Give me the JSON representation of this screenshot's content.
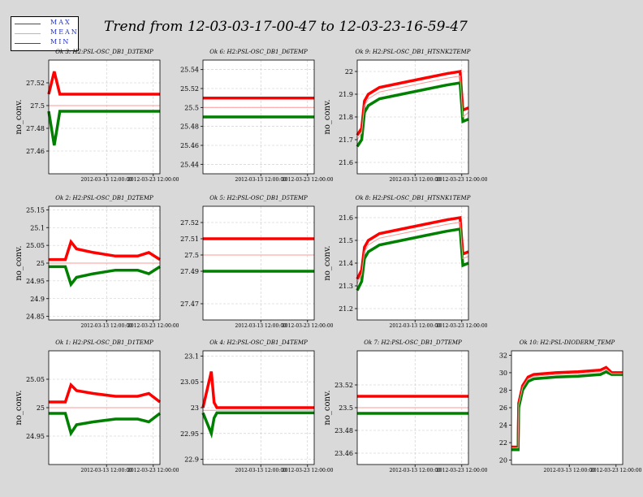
{
  "title": "Trend from 12-03-03-17-00-47 to 12-03-23-16-59-47",
  "legend": [
    {
      "label": "MAX",
      "color": "#ff0000"
    },
    {
      "label": "MEAN",
      "color": "#ff9999"
    },
    {
      "label": "MIN",
      "color": "#008000"
    }
  ],
  "colors": {
    "max": "#ff0000",
    "mean": "#ff9999",
    "min": "#008000",
    "plot_bg": "#ffffff",
    "grid": "#c8c8c8"
  },
  "chart_data": [
    {
      "type": "line",
      "title": "Ok 3: H2:PSL-OSC_DB1_D3TEMP",
      "ylabel": "no_conv.",
      "xticks": [
        "2012-03-13 12:00:00",
        "2012-03-23 12:00:00"
      ],
      "x_range": [
        "2012-03-03 17:00:47",
        "2012-03-23 16:59:47"
      ],
      "ylim": [
        27.44,
        27.54
      ],
      "yticks": [
        27.46,
        27.48,
        27.5,
        27.52
      ],
      "grid": true,
      "series": [
        {
          "name": "MAX",
          "x": [
            0,
            1,
            2,
            3,
            4,
            20
          ],
          "values": [
            27.51,
            27.53,
            27.51,
            27.51,
            27.51,
            27.51
          ]
        },
        {
          "name": "MEAN",
          "x": [
            0,
            20
          ],
          "values": [
            27.5,
            27.5
          ]
        },
        {
          "name": "MIN",
          "x": [
            0,
            1,
            1.5,
            2,
            3,
            20
          ],
          "values": [
            27.495,
            27.465,
            27.48,
            27.495,
            27.495,
            27.495
          ]
        }
      ]
    },
    {
      "type": "line",
      "title": "Ok 6: H2:PSL-OSC_DB1_D6TEMP",
      "ylabel": "",
      "xticks": [
        "2012-03-13 12:00:00",
        "2012-03-23 12:00:00"
      ],
      "x_range": [
        "2012-03-03 17:00:47",
        "2012-03-23 16:59:47"
      ],
      "ylim": [
        25.43,
        25.55
      ],
      "yticks": [
        25.44,
        25.46,
        25.48,
        25.5,
        25.52,
        25.54
      ],
      "grid": true,
      "series": [
        {
          "name": "MAX",
          "x": [
            0,
            20
          ],
          "values": [
            25.51,
            25.51
          ]
        },
        {
          "name": "MEAN",
          "x": [
            0,
            20
          ],
          "values": [
            25.5,
            25.5
          ]
        },
        {
          "name": "MIN",
          "x": [
            0,
            20
          ],
          "values": [
            25.49,
            25.49
          ]
        }
      ]
    },
    {
      "type": "line",
      "title": "Ok 9: H2:PSL-OSC_DB1_HTSNK2TEMP",
      "ylabel": "no_conv.",
      "xticks": [
        "2012-03-13 12:00:00",
        "2012-03-23 12:00:00"
      ],
      "x_range": [
        "2012-03-03 17:00:47",
        "2012-03-23 16:59:47"
      ],
      "ylim": [
        21.55,
        22.05
      ],
      "yticks": [
        21.6,
        21.7,
        21.8,
        21.9,
        22
      ],
      "grid": true,
      "series": [
        {
          "name": "MAX",
          "x": [
            0,
            0.8,
            1.3,
            2,
            4,
            8,
            12,
            16,
            18.5,
            19,
            20
          ],
          "values": [
            21.72,
            21.75,
            21.87,
            21.9,
            21.93,
            21.95,
            21.97,
            21.99,
            22.0,
            21.83,
            21.84
          ]
        },
        {
          "name": "MEAN",
          "x": [
            0,
            0.8,
            1.3,
            2,
            4,
            8,
            12,
            16,
            18.5,
            19,
            20
          ],
          "values": [
            21.7,
            21.73,
            21.85,
            21.88,
            21.91,
            21.93,
            21.95,
            21.97,
            21.98,
            21.8,
            21.82
          ]
        },
        {
          "name": "MIN",
          "x": [
            0,
            0.8,
            1.3,
            2,
            4,
            8,
            12,
            16,
            18.5,
            19,
            20
          ],
          "values": [
            21.67,
            21.7,
            21.82,
            21.85,
            21.88,
            21.9,
            21.92,
            21.94,
            21.95,
            21.78,
            21.79
          ]
        }
      ]
    },
    {
      "type": "line",
      "title": "Ok 2: H2:PSL-OSC_DB1_D2TEMP",
      "ylabel": "no_conv.",
      "xticks": [
        "2012-03-13 12:00:00",
        "2012-03-23 12:00:00"
      ],
      "x_range": [
        "2012-03-03 17:00:47",
        "2012-03-23 16:59:47"
      ],
      "ylim": [
        24.84,
        25.16
      ],
      "yticks": [
        24.85,
        24.9,
        24.95,
        25,
        25.05,
        25.1,
        25.15
      ],
      "grid": true,
      "series": [
        {
          "name": "MAX",
          "x": [
            0,
            3,
            4,
            5,
            8,
            12,
            16,
            18,
            20
          ],
          "values": [
            25.01,
            25.01,
            25.06,
            25.04,
            25.03,
            25.02,
            25.02,
            25.03,
            25.01
          ]
        },
        {
          "name": "MEAN",
          "x": [
            0,
            20
          ],
          "values": [
            25.0,
            25.0
          ]
        },
        {
          "name": "MIN",
          "x": [
            0,
            3,
            4,
            5,
            8,
            12,
            16,
            18,
            20
          ],
          "values": [
            24.99,
            24.99,
            24.94,
            24.96,
            24.97,
            24.98,
            24.98,
            24.97,
            24.99
          ]
        }
      ]
    },
    {
      "type": "line",
      "title": "Ok 5: H2:PSL-OSC_DB1_D5TEMP",
      "ylabel": "",
      "xticks": [
        "2012-03-13 12:00:00",
        "2012-03-23 12:00:00"
      ],
      "x_range": [
        "2012-03-03 17:00:47",
        "2012-03-23 16:59:47"
      ],
      "ylim": [
        27.46,
        27.53
      ],
      "yticks": [
        27.47,
        27.49,
        27.5,
        27.51,
        27.52
      ],
      "grid": true,
      "series": [
        {
          "name": "MAX",
          "x": [
            0,
            20
          ],
          "values": [
            27.51,
            27.51
          ]
        },
        {
          "name": "MEAN",
          "x": [
            0,
            20
          ],
          "values": [
            27.5,
            27.5
          ]
        },
        {
          "name": "MIN",
          "x": [
            0,
            20
          ],
          "values": [
            27.49,
            27.49
          ]
        }
      ]
    },
    {
      "type": "line",
      "title": "Ok 8: H2:PSL-OSC_DB1_HTSNK1TEMP",
      "ylabel": "no_conv.",
      "xticks": [
        "2012-03-13 12:00:00",
        "2012-03-23 12:00:00"
      ],
      "x_range": [
        "2012-03-03 17:00:47",
        "2012-03-23 16:59:47"
      ],
      "ylim": [
        21.15,
        21.65
      ],
      "yticks": [
        21.2,
        21.3,
        21.4,
        21.5,
        21.6
      ],
      "grid": true,
      "series": [
        {
          "name": "MAX",
          "x": [
            0,
            0.8,
            1.3,
            2,
            4,
            8,
            12,
            16,
            18.5,
            19,
            20
          ],
          "values": [
            21.33,
            21.37,
            21.47,
            21.5,
            21.53,
            21.55,
            21.57,
            21.59,
            21.6,
            21.44,
            21.45
          ]
        },
        {
          "name": "MEAN",
          "x": [
            0,
            0.8,
            1.3,
            2,
            4,
            8,
            12,
            16,
            18.5,
            19,
            20
          ],
          "values": [
            21.31,
            21.35,
            21.45,
            21.48,
            21.51,
            21.53,
            21.55,
            21.57,
            21.58,
            21.42,
            21.43
          ]
        },
        {
          "name": "MIN",
          "x": [
            0,
            0.8,
            1.3,
            2,
            4,
            8,
            12,
            16,
            18.5,
            19,
            20
          ],
          "values": [
            21.28,
            21.32,
            21.42,
            21.45,
            21.48,
            21.5,
            21.52,
            21.54,
            21.55,
            21.39,
            21.4
          ]
        }
      ]
    },
    {
      "type": "line",
      "title": "Ok 1: H2:PSL-OSC_DB1_D1TEMP",
      "ylabel": "no_conv.",
      "xticks": [
        "2012-03-13 12:00:00",
        "2012-03-23 12:00:00"
      ],
      "x_range": [
        "2012-03-03 17:00:47",
        "2012-03-23 16:59:47"
      ],
      "ylim": [
        24.9,
        25.1
      ],
      "yticks": [
        24.95,
        25,
        25.05
      ],
      "grid": true,
      "series": [
        {
          "name": "MAX",
          "x": [
            0,
            3,
            4,
            5,
            8,
            12,
            16,
            18,
            20
          ],
          "values": [
            25.01,
            25.01,
            25.04,
            25.03,
            25.025,
            25.02,
            25.02,
            25.025,
            25.01
          ]
        },
        {
          "name": "MEAN",
          "x": [
            0,
            20
          ],
          "values": [
            25.0,
            25.0
          ]
        },
        {
          "name": "MIN",
          "x": [
            0,
            3,
            4,
            5,
            8,
            12,
            16,
            18,
            20
          ],
          "values": [
            24.99,
            24.99,
            24.955,
            24.97,
            24.975,
            24.98,
            24.98,
            24.975,
            24.99
          ]
        }
      ]
    },
    {
      "type": "line",
      "title": "Ok 4: H2:PSL-OSC_DB1_D4TEMP",
      "ylabel": "",
      "xticks": [
        "2012-03-13 12:00:00",
        "2012-03-23 12:00:00"
      ],
      "x_range": [
        "2012-03-03 17:00:47",
        "2012-03-23 16:59:47"
      ],
      "ylim": [
        22.89,
        23.11
      ],
      "yticks": [
        22.9,
        22.95,
        23,
        23.05,
        23.1
      ],
      "grid": true,
      "series": [
        {
          "name": "MAX",
          "x": [
            0,
            1.5,
            2,
            2.5,
            20
          ],
          "values": [
            23.0,
            23.07,
            23.01,
            23.0,
            23.0
          ]
        },
        {
          "name": "MEAN",
          "x": [
            0,
            20
          ],
          "values": [
            22.995,
            22.995
          ]
        },
        {
          "name": "MIN",
          "x": [
            0,
            1.5,
            2,
            2.5,
            20
          ],
          "values": [
            22.99,
            22.95,
            22.98,
            22.99,
            22.99
          ]
        }
      ]
    },
    {
      "type": "line",
      "title": "Ok 7: H2:PSL-OSC_DB1_D7TEMP",
      "ylabel": "no_conv.",
      "xticks": [
        "2012-03-13 12:00:00",
        "2012-03-23 12:00:00"
      ],
      "x_range": [
        "2012-03-03 17:00:47",
        "2012-03-23 16:59:47"
      ],
      "ylim": [
        23.45,
        23.55
      ],
      "yticks": [
        23.46,
        23.48,
        23.5,
        23.52
      ],
      "grid": true,
      "series": [
        {
          "name": "MAX",
          "x": [
            0,
            20
          ],
          "values": [
            23.51,
            23.51
          ]
        },
        {
          "name": "MEAN",
          "x": [
            0,
            20
          ],
          "values": [
            23.5,
            23.5
          ]
        },
        {
          "name": "MIN",
          "x": [
            0,
            20
          ],
          "values": [
            23.495,
            23.495
          ]
        }
      ]
    },
    {
      "type": "line",
      "title": "Ok 10: H2:PSL-DIODERM_TEMP",
      "ylabel": "",
      "xticks": [
        "2012-03-13 12:00:00",
        "2012-03-23 12:00:00"
      ],
      "x_range": [
        "2012-03-03 17:00:47",
        "2012-03-23 16:59:47"
      ],
      "ylim": [
        19.5,
        32.5
      ],
      "yticks": [
        20,
        22,
        24,
        26,
        28,
        30,
        32
      ],
      "grid": false,
      "series": [
        {
          "name": "MAX",
          "x": [
            0,
            1.2,
            1.3,
            2,
            3,
            4,
            6,
            8,
            12,
            16,
            17,
            18,
            20
          ],
          "values": [
            21.5,
            21.5,
            26.5,
            28.5,
            29.5,
            29.8,
            29.9,
            30.0,
            30.1,
            30.3,
            30.6,
            30.0,
            30.0
          ]
        },
        {
          "name": "MEAN",
          "x": [
            0,
            1.2,
            1.3,
            2,
            3,
            4,
            6,
            8,
            12,
            16,
            17,
            18,
            20
          ],
          "values": [
            21.4,
            21.4,
            26.3,
            28.3,
            29.3,
            29.6,
            29.7,
            29.8,
            29.9,
            30.1,
            30.4,
            29.9,
            29.9
          ]
        },
        {
          "name": "MIN",
          "x": [
            0,
            1.2,
            1.3,
            2,
            3,
            4,
            6,
            8,
            12,
            16,
            17,
            18,
            20
          ],
          "values": [
            21.2,
            21.2,
            26.0,
            28.0,
            29.0,
            29.3,
            29.4,
            29.5,
            29.6,
            29.8,
            30.1,
            29.8,
            29.8
          ]
        }
      ]
    }
  ]
}
